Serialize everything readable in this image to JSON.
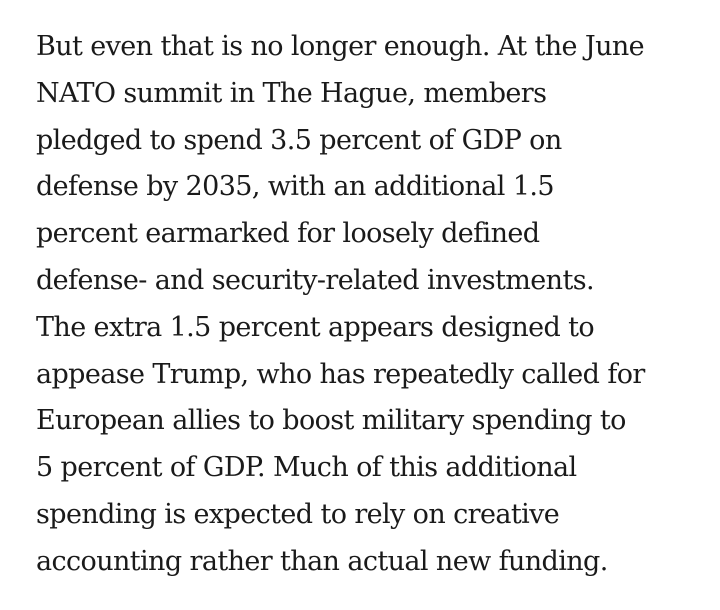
{
  "article": {
    "paragraph_lines": [
      "But even that is no longer enough. At the June",
      "NATO summit in The Hague, members",
      "pledged to spend 3.5 percent of GDP on",
      "defense by 2035, with an additional 1.5",
      "percent earmarked for loosely defined",
      "defense- and security-related investments.",
      "The extra 1.5 percent appears designed to",
      "appease Trump, who has repeatedly called for",
      "European allies to boost military spending to",
      "5 percent of GDP. Much of this additional",
      "spending is expected to rely on creative",
      "accounting rather than actual new funding."
    ]
  }
}
